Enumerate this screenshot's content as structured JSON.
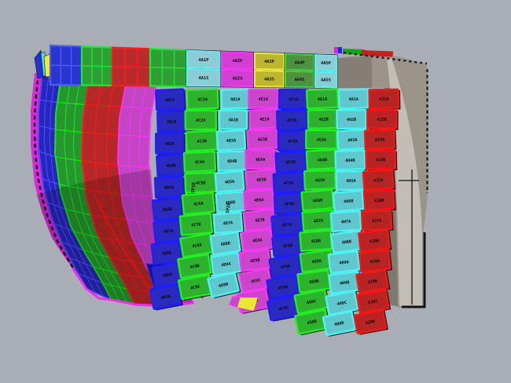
{
  "viewport": {
    "background": "#A9AEB6",
    "model_name": "hull plate arrangement model",
    "plate_gap_color": "#0B0B0B",
    "label_color": "#0A0A0A"
  },
  "palette": {
    "blue": {
      "fill": "#2A2AC0",
      "edge": "#1E1EFF"
    },
    "green": {
      "fill": "#2EB22E",
      "edge": "#22EE22"
    },
    "cyan": {
      "fill": "#5FC8CE",
      "edge": "#4FF2F2"
    },
    "magenta": {
      "fill": "#CC44CC",
      "edge": "#F23AF2"
    },
    "red": {
      "fill": "#B82424",
      "edge": "#F51616"
    },
    "yellow": {
      "fill": "#BDB72F",
      "edge": "#F0EA38"
    },
    "sage": {
      "fill": "#4E9140",
      "edge": "#3FD23F"
    },
    "sky": {
      "fill": "#8BCDD6",
      "edge": "#5AEFF2"
    },
    "orchid": {
      "fill": "#D33ED3",
      "edge": "#F23AF2"
    }
  },
  "hull_bands": [
    {
      "name": "edge-strake",
      "fill": "#DC28DC",
      "grid": "#F02CF0",
      "dashed": true
    },
    {
      "name": "strake-blue",
      "fill": "#2626BB",
      "grid": "#4A4AFF"
    },
    {
      "name": "strake-green",
      "fill": "#27962F",
      "grid": "#14E414"
    },
    {
      "name": "strake-red",
      "fill": "#B62828",
      "grid": "#FA1A1A"
    },
    {
      "name": "strake-magenta",
      "fill": "#C246C2",
      "grid": "#FA32FA"
    }
  ],
  "top_band": {
    "plain_plates": [
      {
        "fill": "#2A35CE",
        "grid": "#4A5BFF"
      },
      {
        "fill": "#2F9E33",
        "grid": "#1BE83B"
      },
      {
        "fill": "#BB2A2A",
        "grid": "#F51F1F"
      },
      {
        "fill": "#2F9E33",
        "grid": "#1BE83B"
      }
    ],
    "labeled_plates": [
      {
        "palette": "sky",
        "labels": [
          "4A1P",
          "4A1S"
        ]
      },
      {
        "palette": "orchid",
        "labels": [
          "4A2P",
          "4A2S"
        ]
      },
      {
        "palette": "yellow",
        "labels": [
          "4A3P",
          "4A3S"
        ]
      },
      {
        "palette": "sage",
        "labels": [
          "4A4P",
          "4A4S"
        ]
      },
      {
        "palette": "sky",
        "labels": [
          "4A5P",
          "4A5S"
        ]
      }
    ]
  },
  "strakes": [
    {
      "id": "strake-1",
      "palette": "blue",
      "labels": [
        "4B1A",
        "4B2A",
        "4B3A",
        "4B4B",
        "4B5A",
        "4B6B",
        "4B7A",
        "4B8B",
        "4B9A",
        "4B9B"
      ]
    },
    {
      "id": "strake-2",
      "palette": "green",
      "labels": [
        "4C1A",
        "4C2A",
        "4C3B",
        "4C4A",
        "4C5B",
        "4C6A",
        "4C7B",
        "4C8A",
        "4C9B",
        "4C9C"
      ]
    },
    {
      "id": "strake-3",
      "palette": "cyan",
      "labels": [
        "4D1A",
        "4D2B",
        "4D3A",
        "4D4B",
        "4D5A",
        "4D6B",
        "4D7A",
        "4D8B",
        "4D9A",
        "4D9B"
      ]
    },
    {
      "id": "strake-4",
      "palette": "magenta",
      "labels": [
        "4E1A",
        "4E2A",
        "4E3B",
        "4E4A",
        "4E5B",
        "4E6A",
        "4E7B",
        "4E8A",
        "4E9B",
        "4E9C",
        "4E9D"
      ]
    },
    {
      "id": "strake-5",
      "palette": "blue",
      "labels": [
        "4F1A",
        "4F2B",
        "4F3A",
        "4F4B",
        "4F5A",
        "4F6B",
        "4F7A",
        "4F8B",
        "4F9A",
        "4F9B",
        "4F9C"
      ]
    },
    {
      "id": "strake-6",
      "palette": "green",
      "labels": [
        "4G1A",
        "4G2B",
        "4G3A",
        "4G4B",
        "4G5A",
        "4G6B",
        "4G7A",
        "4G8B",
        "4G9A",
        "4G9B",
        "4G9C",
        "4G9D"
      ]
    },
    {
      "id": "strake-7",
      "palette": "cyan",
      "labels": [
        "4H1A",
        "4H2B",
        "4H3A",
        "4H4B",
        "4H5A",
        "4H6B",
        "4H7A",
        "4H8B",
        "4H9A",
        "4H9B",
        "4H9C",
        "4H9D"
      ]
    },
    {
      "id": "strake-8",
      "palette": "red",
      "labels": [
        "4J1A",
        "4J2B",
        "4J3A",
        "4J4B",
        "4J5A",
        "4J6B",
        "4J7A",
        "4J8B",
        "4J9A",
        "4J9B",
        "4J9C",
        "4J9D"
      ]
    }
  ],
  "annotations": {
    "seam_label_1": "SP1B",
    "seam_label_2": "SP2B"
  },
  "stern": {
    "face": "#9A948A",
    "dark_block": "#847E74",
    "shade": "#7E786E",
    "panel": "#C2BEB6",
    "outline": "#141414",
    "trim_green": "#0AA816",
    "trim_red": "#C81E1E",
    "trim_magenta": "#D02BD0",
    "trim_blue": "#2222EE"
  }
}
